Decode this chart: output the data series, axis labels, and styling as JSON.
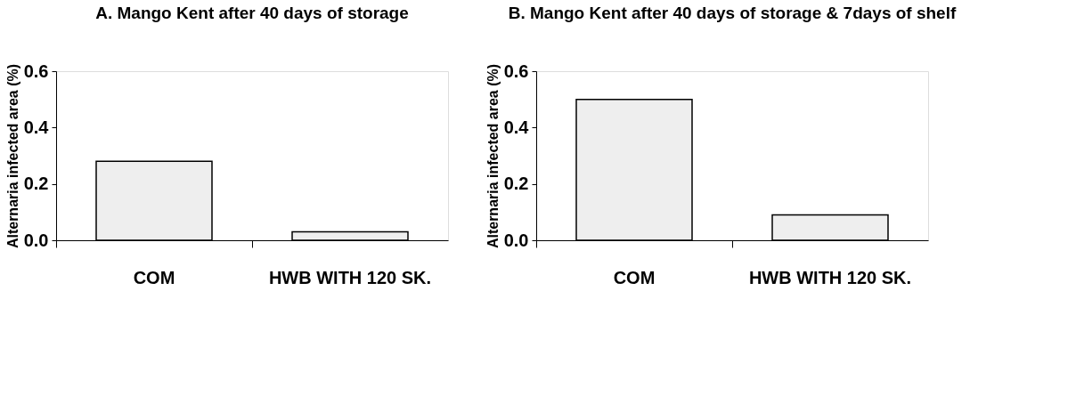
{
  "chart_data": [
    {
      "type": "bar",
      "title": "A. Mango Kent after 40 days of storage",
      "ylabel": "Alternaria infected area (%)",
      "categories": [
        "COM",
        "HWB WITH 120 SK."
      ],
      "values": [
        0.28,
        0.03
      ],
      "color": "#eeeeee",
      "ylim": [
        0,
        0.6
      ],
      "yticks": [
        {
          "value": 0,
          "label": "0.0"
        },
        0.2,
        0.4,
        0.6
      ],
      "grid": false,
      "legend": false
    },
    {
      "type": "bar",
      "title": "B. Mango Kent after 40 days of storage & 7days of shelf",
      "ylabel": "Alternaria infected area (%)",
      "categories": [
        "COM",
        "HWB WITH 120 SK."
      ],
      "values": [
        0.5,
        0.09
      ],
      "color": "#eeeeee",
      "ylim": [
        0,
        0.6
      ],
      "yticks": [
        {
          "value": 0,
          "label": "0.0"
        },
        0.2,
        0.4,
        0.6
      ],
      "grid": false,
      "legend": false
    }
  ]
}
